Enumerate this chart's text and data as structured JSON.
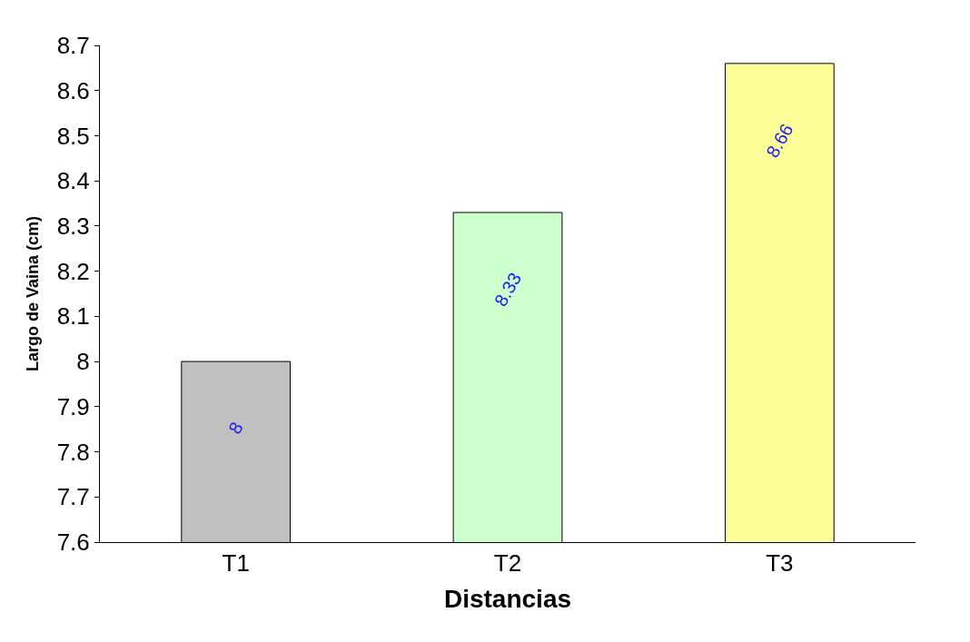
{
  "chart_data": {
    "type": "bar",
    "xlabel": "Distancias",
    "ylabel": "Largo de Vaina (cm)",
    "categories": [
      "T1",
      "T2",
      "T3"
    ],
    "values": [
      8,
      8.33,
      8.66
    ],
    "colors": [
      "#c0c0c0",
      "#ccffcc",
      "#ffff99"
    ],
    "ylim": [
      7.6,
      8.7
    ],
    "yticks": [
      7.6,
      7.7,
      7.8,
      7.9,
      8,
      8.1,
      8.2,
      8.3,
      8.4,
      8.5,
      8.6,
      8.7
    ],
    "data_labels": true
  }
}
